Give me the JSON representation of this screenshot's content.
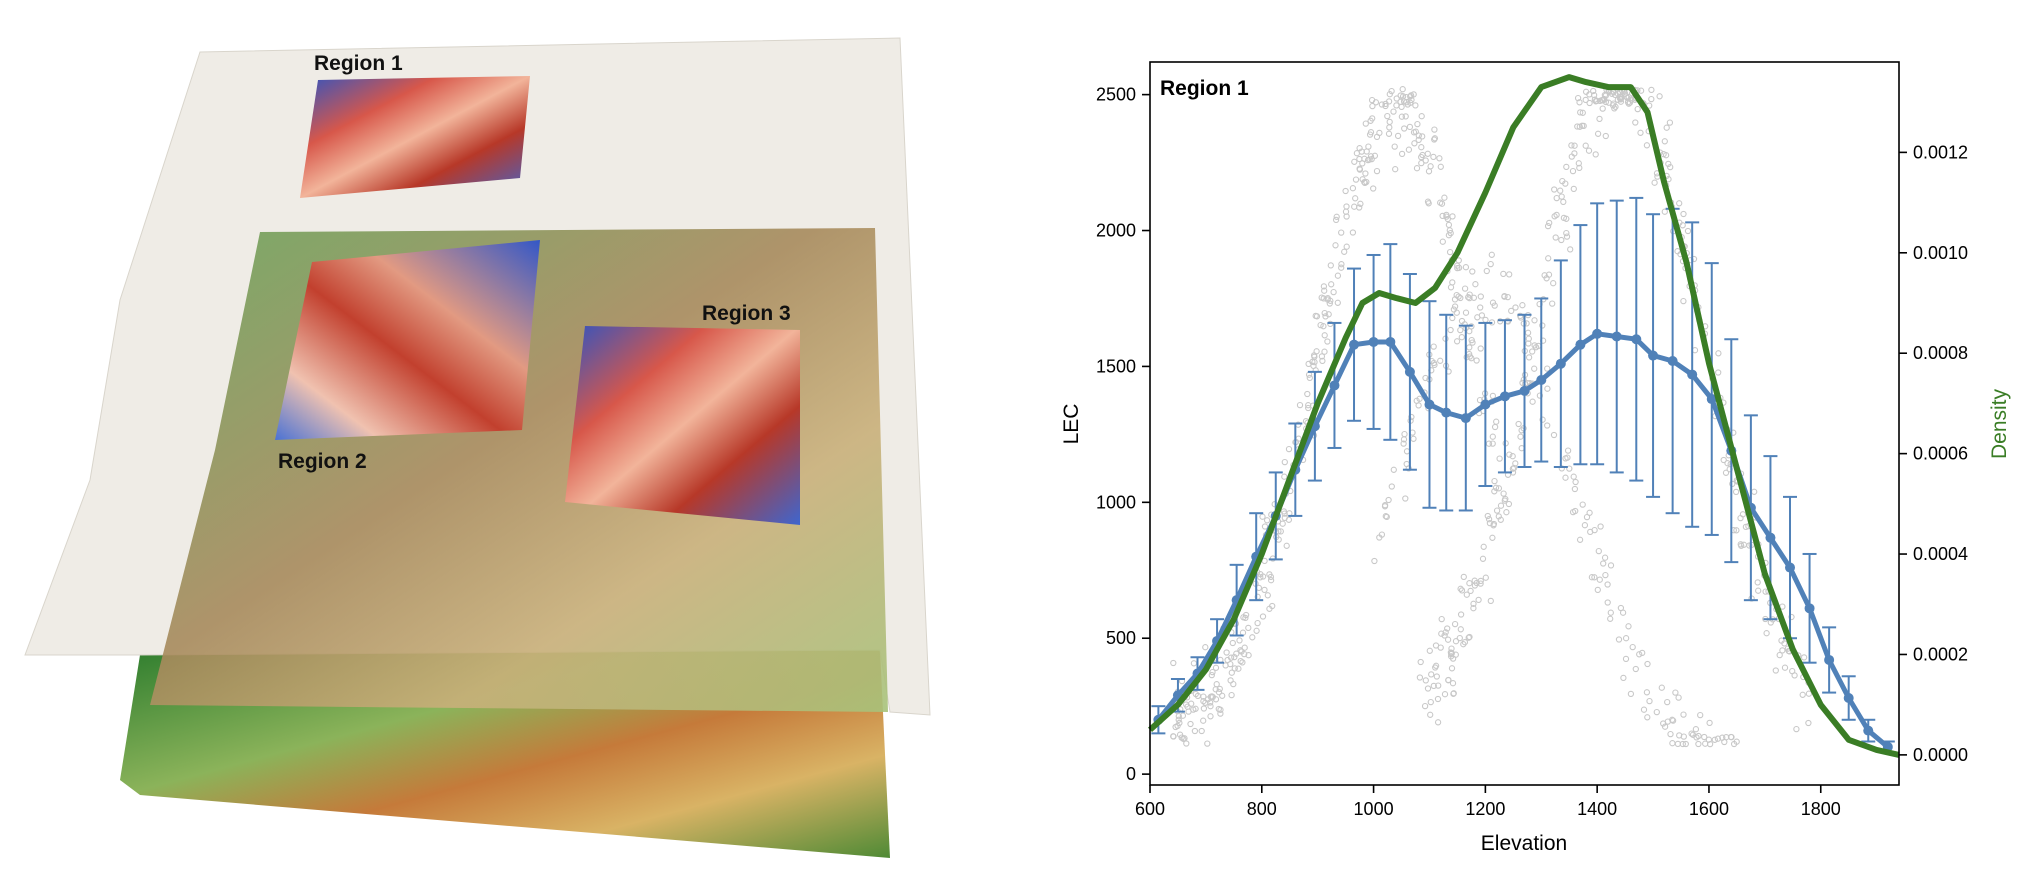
{
  "figure": {
    "map": {
      "region_labels": [
        "Region 1",
        "Region 2",
        "Region 3"
      ]
    }
  },
  "chart_data": {
    "type": "line",
    "panel_label": "Region 1",
    "xlabel": "Elevation",
    "ylabel": "LEC",
    "y2label": "Density",
    "xlim": [
      600,
      1940
    ],
    "ylim": [
      -40,
      2620
    ],
    "y2lim": [
      -6e-05,
      0.00138
    ],
    "xticks": [
      600,
      800,
      1000,
      1200,
      1400,
      1600,
      1800
    ],
    "yticks": [
      0,
      500,
      1000,
      1500,
      2000,
      2500
    ],
    "y2ticks": [
      0.0,
      0.0002,
      0.0004,
      0.0006,
      0.0008,
      0.001,
      0.0012
    ],
    "y2ticklabels": [
      "0.0000",
      "0.0002",
      "0.0004",
      "0.0006",
      "0.0008",
      "0.0010",
      "0.0012"
    ],
    "grid": false,
    "colors": {
      "mean": "#5081b8",
      "density": "#3a7d25",
      "points": "#c8c8c8"
    },
    "series": [
      {
        "kind": "mean-with-error-bars",
        "x": [
          615,
          650,
          685,
          720,
          755,
          790,
          825,
          860,
          895,
          930,
          965,
          1000,
          1030,
          1065,
          1100,
          1130,
          1165,
          1200,
          1235,
          1270,
          1300,
          1335,
          1370,
          1400,
          1435,
          1470,
          1500,
          1535,
          1570,
          1605,
          1640,
          1675,
          1710,
          1745,
          1780,
          1815,
          1850,
          1885,
          1920
        ],
        "y": [
          200,
          290,
          370,
          490,
          640,
          800,
          950,
          1120,
          1280,
          1430,
          1580,
          1590,
          1590,
          1480,
          1360,
          1330,
          1310,
          1360,
          1390,
          1410,
          1450,
          1510,
          1580,
          1620,
          1610,
          1600,
          1540,
          1520,
          1470,
          1380,
          1190,
          980,
          870,
          760,
          610,
          420,
          280,
          160,
          100
        ],
        "err": [
          50,
          60,
          60,
          80,
          130,
          160,
          160,
          170,
          200,
          230,
          280,
          320,
          360,
          360,
          380,
          360,
          340,
          300,
          280,
          280,
          300,
          380,
          440,
          480,
          500,
          520,
          520,
          560,
          560,
          500,
          410,
          340,
          300,
          260,
          200,
          120,
          80,
          40,
          20
        ]
      },
      {
        "kind": "density",
        "axis": "right",
        "x": [
          600,
          650,
          700,
          750,
          800,
          850,
          900,
          950,
          980,
          1010,
          1040,
          1075,
          1110,
          1150,
          1200,
          1250,
          1300,
          1350,
          1380,
          1420,
          1460,
          1490,
          1520,
          1560,
          1600,
          1650,
          1700,
          1750,
          1800,
          1850,
          1900,
          1940
        ],
        "y": [
          5e-05,
          0.0001,
          0.00017,
          0.00027,
          0.0004,
          0.00055,
          0.0007,
          0.00083,
          0.0009,
          0.00092,
          0.00091,
          0.0009,
          0.00093,
          0.001,
          0.00112,
          0.00125,
          0.00133,
          0.00135,
          0.00134,
          0.00133,
          0.00133,
          0.00128,
          0.00114,
          0.00098,
          0.00078,
          0.00057,
          0.00036,
          0.00021,
          0.0001,
          3e-05,
          1e-05,
          0.0
        ]
      }
    ],
    "scatter_points": "many grey open circles (individual LEC samples) spanning roughly elevation 620–1880 and LEC 120–2520"
  }
}
